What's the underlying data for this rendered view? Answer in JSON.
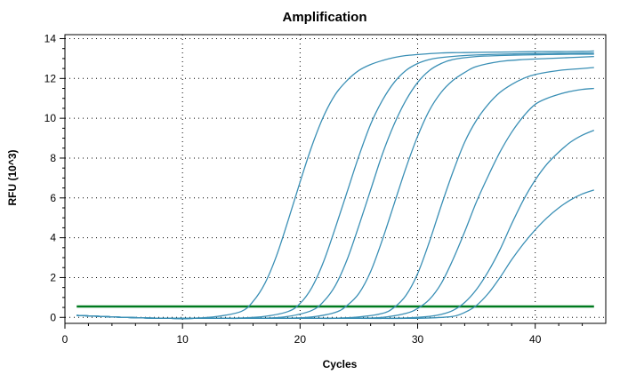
{
  "chart_data": {
    "type": "line",
    "title": "Amplification",
    "xlabel": "Cycles",
    "ylabel": "RFU (10^3)",
    "xlim": [
      0,
      46
    ],
    "ylim": [
      -0.3,
      14.2
    ],
    "xticks": [
      0,
      10,
      20,
      30,
      40
    ],
    "yticks": [
      0,
      2,
      4,
      6,
      8,
      10,
      12,
      14
    ],
    "grid": true,
    "legend": "none",
    "curve_color": "#3a8fb5",
    "threshold_color": "#007a1f",
    "threshold": {
      "value": 0.55,
      "x": [
        1,
        45
      ]
    },
    "series": [
      {
        "x": [
          1,
          3,
          5,
          7,
          9,
          11,
          13,
          15,
          16,
          17,
          18,
          19,
          20,
          21,
          22,
          23,
          24,
          25,
          26,
          27,
          28,
          29,
          30,
          32,
          34,
          36,
          38,
          40,
          42,
          44,
          45
        ],
        "y": [
          0.1,
          0.05,
          0,
          -0.03,
          -0.05,
          -0.04,
          0.05,
          0.3,
          0.8,
          1.7,
          3.1,
          4.9,
          6.8,
          8.6,
          10.1,
          11.2,
          11.9,
          12.4,
          12.7,
          12.9,
          13.05,
          13.15,
          13.2,
          13.28,
          13.3,
          13.32,
          13.33,
          13.35,
          13.35,
          13.36,
          13.38
        ]
      },
      {
        "x": [
          1,
          3,
          5,
          7,
          9,
          11,
          13,
          15,
          17,
          19,
          20,
          21,
          22,
          23,
          24,
          25,
          26,
          27,
          28,
          29,
          30,
          31,
          32,
          34,
          36,
          38,
          40,
          42,
          44,
          45
        ],
        "y": [
          0.1,
          0.05,
          0,
          -0.03,
          -0.05,
          -0.05,
          -0.05,
          -0.03,
          0.05,
          0.3,
          0.7,
          1.5,
          2.8,
          4.5,
          6.3,
          8.1,
          9.7,
          10.9,
          11.8,
          12.4,
          12.75,
          12.95,
          13.05,
          13.15,
          13.2,
          13.23,
          13.25,
          13.26,
          13.27,
          13.28
        ]
      },
      {
        "x": [
          1,
          3,
          5,
          7,
          9,
          11,
          13,
          15,
          17,
          19,
          21,
          22,
          23,
          24,
          25,
          26,
          27,
          28,
          29,
          30,
          31,
          32,
          33,
          35,
          37,
          39,
          41,
          43,
          45
        ],
        "y": [
          0.1,
          0.05,
          0,
          -0.03,
          -0.05,
          -0.05,
          -0.05,
          -0.05,
          -0.04,
          0.05,
          0.35,
          0.8,
          1.6,
          2.9,
          4.6,
          6.4,
          8.2,
          9.7,
          10.9,
          11.8,
          12.4,
          12.75,
          12.95,
          13.1,
          13.15,
          13.18,
          13.2,
          13.22,
          13.22
        ]
      },
      {
        "x": [
          1,
          3,
          5,
          7,
          9,
          11,
          13,
          15,
          17,
          19,
          21,
          23,
          24,
          25,
          26,
          27,
          28,
          29,
          30,
          31,
          32,
          33,
          34,
          35,
          37,
          39,
          41,
          43,
          45
        ],
        "y": [
          0.1,
          0.05,
          0,
          -0.03,
          -0.05,
          -0.05,
          -0.05,
          -0.05,
          -0.05,
          -0.04,
          0.02,
          0.25,
          0.6,
          1.2,
          2.3,
          3.9,
          5.7,
          7.5,
          9.1,
          10.4,
          11.3,
          11.9,
          12.3,
          12.6,
          12.85,
          12.95,
          13.0,
          13.05,
          13.1
        ]
      },
      {
        "x": [
          1,
          3,
          5,
          7,
          9,
          11,
          13,
          15,
          17,
          19,
          21,
          23,
          25,
          27,
          28,
          29,
          30,
          31,
          32,
          33,
          34,
          35,
          36,
          37,
          38,
          39,
          40,
          42,
          44,
          45
        ],
        "y": [
          0.1,
          0.05,
          0,
          -0.03,
          -0.05,
          -0.05,
          -0.05,
          -0.05,
          -0.05,
          -0.05,
          -0.05,
          -0.04,
          0.02,
          0.2,
          0.5,
          1.1,
          2.2,
          3.8,
          5.6,
          7.3,
          8.8,
          9.9,
          10.7,
          11.3,
          11.7,
          12.0,
          12.2,
          12.4,
          12.5,
          12.55
        ]
      },
      {
        "x": [
          1,
          3,
          5,
          7,
          9,
          11,
          13,
          15,
          17,
          19,
          21,
          23,
          25,
          27,
          29,
          30,
          31,
          32,
          33,
          34,
          35,
          36,
          37,
          38,
          39,
          40,
          41,
          42,
          43,
          44,
          45
        ],
        "y": [
          0.1,
          0.05,
          0,
          -0.03,
          -0.05,
          -0.05,
          -0.05,
          -0.05,
          -0.05,
          -0.05,
          -0.05,
          -0.05,
          -0.04,
          0.0,
          0.2,
          0.45,
          0.9,
          1.7,
          2.9,
          4.3,
          5.8,
          7.1,
          8.3,
          9.3,
          10.1,
          10.7,
          11.0,
          11.2,
          11.35,
          11.45,
          11.5
        ]
      },
      {
        "x": [
          1,
          3,
          5,
          7,
          9,
          11,
          13,
          15,
          17,
          19,
          21,
          23,
          25,
          27,
          29,
          31,
          32,
          33,
          34,
          35,
          36,
          37,
          38,
          39,
          40,
          41,
          42,
          43,
          44,
          45
        ],
        "y": [
          0.1,
          0.05,
          0,
          -0.03,
          -0.05,
          -0.05,
          -0.05,
          -0.05,
          -0.05,
          -0.05,
          -0.05,
          -0.05,
          -0.05,
          -0.05,
          -0.03,
          0.05,
          0.15,
          0.35,
          0.75,
          1.4,
          2.3,
          3.4,
          4.7,
          5.9,
          6.9,
          7.7,
          8.3,
          8.8,
          9.15,
          9.4
        ]
      },
      {
        "x": [
          1,
          3,
          5,
          7,
          9,
          11,
          13,
          15,
          17,
          19,
          21,
          23,
          25,
          27,
          29,
          31,
          33,
          34,
          35,
          36,
          37,
          38,
          39,
          40,
          41,
          42,
          43,
          44,
          45
        ],
        "y": [
          0.1,
          0.05,
          0,
          -0.03,
          -0.05,
          -0.05,
          -0.05,
          -0.05,
          -0.05,
          -0.05,
          -0.05,
          -0.05,
          -0.05,
          -0.05,
          -0.05,
          -0.03,
          0.05,
          0.25,
          0.6,
          1.2,
          2.0,
          2.9,
          3.7,
          4.4,
          5.0,
          5.5,
          5.9,
          6.2,
          6.4
        ]
      }
    ]
  }
}
